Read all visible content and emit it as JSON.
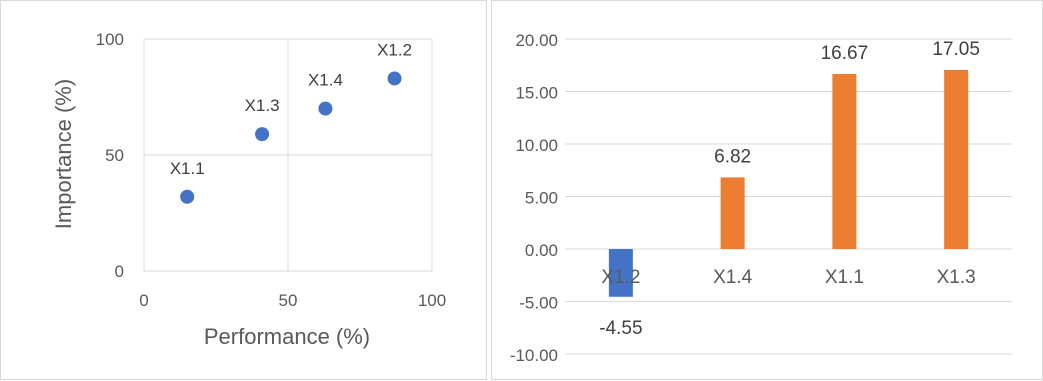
{
  "chart_data": [
    {
      "type": "scatter",
      "title": "",
      "xlabel": "Performance (%)",
      "ylabel": "Importance (%)",
      "xlim": [
        0,
        100
      ],
      "ylim": [
        0,
        100
      ],
      "x_ticks": [
        "0",
        "50",
        "100"
      ],
      "y_ticks": [
        "0",
        "50",
        "100"
      ],
      "grid": true,
      "marker_color": "#4472C4",
      "points": [
        {
          "label": "X1.1",
          "x": 15,
          "y": 32
        },
        {
          "label": "X1.3",
          "x": 41,
          "y": 59
        },
        {
          "label": "X1.4",
          "x": 63,
          "y": 70
        },
        {
          "label": "X1.2",
          "x": 87,
          "y": 83
        }
      ]
    },
    {
      "type": "bar",
      "title": "",
      "xlabel": "",
      "ylabel": "",
      "ylim": [
        -10,
        20
      ],
      "y_ticks": [
        "-10.00",
        "-5.00",
        "0.00",
        "5.00",
        "10.00",
        "15.00",
        "20.00"
      ],
      "grid": true,
      "negative_color": "#4472C4",
      "positive_color": "#ED7D31",
      "categories": [
        "X1.2",
        "X1.4",
        "X1.1",
        "X1.3"
      ],
      "values": [
        -4.55,
        6.82,
        16.67,
        17.05
      ],
      "value_labels": [
        "-4.55",
        "6.82",
        "16.67",
        "17.05"
      ]
    }
  ]
}
